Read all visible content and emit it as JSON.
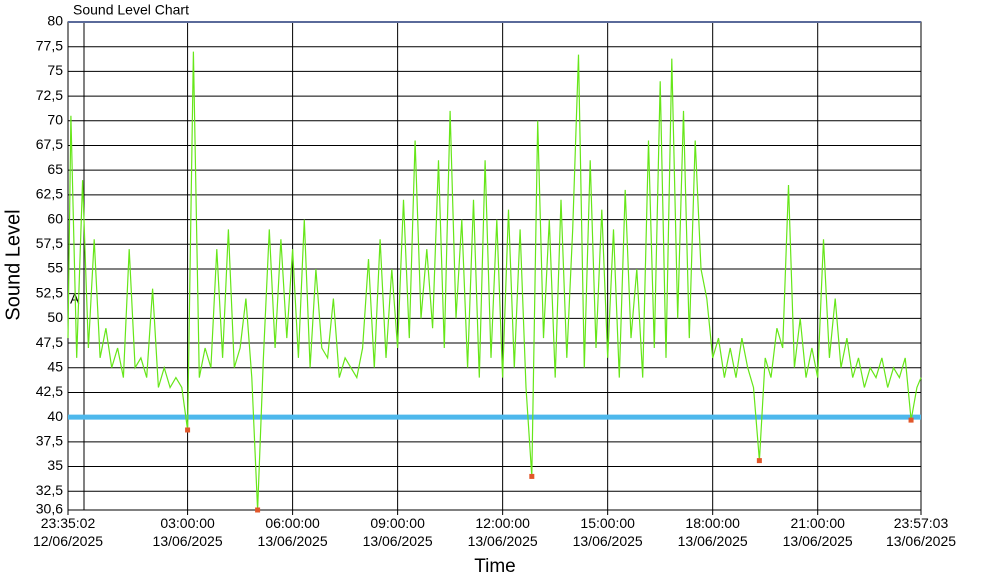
{
  "chart_data": {
    "type": "line",
    "title": "Sound Level Chart",
    "xlabel": "Time",
    "ylabel": "Sound Level",
    "annotation": "A",
    "xlim": [
      "2025-06-12T23:35:02",
      "2025-06-13T23:57:03"
    ],
    "xticks": [
      {
        "value": "2025-06-12T23:35:02",
        "label": "23:35:02\n12/06/2025"
      },
      {
        "value": "2025-06-13T03:00:00",
        "label": "03:00:00\n13/06/2025"
      },
      {
        "value": "2025-06-13T06:00:00",
        "label": "06:00:00\n13/06/2025"
      },
      {
        "value": "2025-06-13T09:00:00",
        "label": "09:00:00\n13/06/2025"
      },
      {
        "value": "2025-06-13T12:00:00",
        "label": "12:00:00\n13/06/2025"
      },
      {
        "value": "2025-06-13T15:00:00",
        "label": "15:00:00\n13/06/2025"
      },
      {
        "value": "2025-06-13T18:00:00",
        "label": "18:00:00\n13/06/2025"
      },
      {
        "value": "2025-06-13T21:00:00",
        "label": "21:00:00\n13/06/2025"
      },
      {
        "value": "2025-06-13T23:57:03",
        "label": "23:57:03\n13/06/2025"
      }
    ],
    "ylim": [
      30.6,
      80
    ],
    "yticks": [
      {
        "value": 30.6,
        "label": "30,6"
      },
      {
        "value": 32.5,
        "label": "32,5"
      },
      35,
      {
        "value": 37.5,
        "label": "37,5"
      },
      40,
      {
        "value": 42.5,
        "label": "42,5"
      },
      45,
      {
        "value": 47.5,
        "label": "47,5"
      },
      50,
      {
        "value": 52.5,
        "label": "52,5"
      },
      55,
      {
        "value": 57.5,
        "label": "57,5"
      },
      60,
      {
        "value": 62.5,
        "label": "62,5"
      },
      65,
      {
        "value": 67.5,
        "label": "67,5"
      },
      70,
      {
        "value": 72.5,
        "label": "72,5"
      },
      75,
      {
        "value": 77.5,
        "label": "77,5"
      },
      80
    ],
    "grid": true,
    "threshold": {
      "value": 40,
      "color": "#4db8ec"
    },
    "series": [
      {
        "color": "#66e619",
        "x": [
          "2025-06-12T23:35:02",
          "2025-06-12T23:40",
          "2025-06-12T23:50",
          "2025-06-13T00:00",
          "2025-06-13T00:10",
          "2025-06-13T00:20",
          "2025-06-13T00:30",
          "2025-06-13T00:40",
          "2025-06-13T00:50",
          "2025-06-13T01:00",
          "2025-06-13T01:10",
          "2025-06-13T01:20",
          "2025-06-13T01:30",
          "2025-06-13T01:40",
          "2025-06-13T01:50",
          "2025-06-13T02:00",
          "2025-06-13T02:10",
          "2025-06-13T02:20",
          "2025-06-13T02:30",
          "2025-06-13T02:40",
          "2025-06-13T02:50",
          "2025-06-13T03:00",
          "2025-06-13T03:10",
          "2025-06-13T03:20",
          "2025-06-13T03:30",
          "2025-06-13T03:40",
          "2025-06-13T03:50",
          "2025-06-13T04:00",
          "2025-06-13T04:10",
          "2025-06-13T04:20",
          "2025-06-13T04:30",
          "2025-06-13T04:40",
          "2025-06-13T04:50",
          "2025-06-13T05:00",
          "2025-06-13T05:10",
          "2025-06-13T05:20",
          "2025-06-13T05:30",
          "2025-06-13T05:40",
          "2025-06-13T05:50",
          "2025-06-13T06:00",
          "2025-06-13T06:10",
          "2025-06-13T06:20",
          "2025-06-13T06:30",
          "2025-06-13T06:40",
          "2025-06-13T06:50",
          "2025-06-13T07:00",
          "2025-06-13T07:10",
          "2025-06-13T07:20",
          "2025-06-13T07:30",
          "2025-06-13T07:40",
          "2025-06-13T07:50",
          "2025-06-13T08:00",
          "2025-06-13T08:10",
          "2025-06-13T08:20",
          "2025-06-13T08:30",
          "2025-06-13T08:40",
          "2025-06-13T08:50",
          "2025-06-13T09:00",
          "2025-06-13T09:10",
          "2025-06-13T09:20",
          "2025-06-13T09:30",
          "2025-06-13T09:40",
          "2025-06-13T09:50",
          "2025-06-13T10:00",
          "2025-06-13T10:10",
          "2025-06-13T10:20",
          "2025-06-13T10:30",
          "2025-06-13T10:40",
          "2025-06-13T10:50",
          "2025-06-13T11:00",
          "2025-06-13T11:10",
          "2025-06-13T11:20",
          "2025-06-13T11:30",
          "2025-06-13T11:40",
          "2025-06-13T11:50",
          "2025-06-13T12:00",
          "2025-06-13T12:10",
          "2025-06-13T12:20",
          "2025-06-13T12:30",
          "2025-06-13T12:40",
          "2025-06-13T12:50",
          "2025-06-13T13:00",
          "2025-06-13T13:10",
          "2025-06-13T13:20",
          "2025-06-13T13:30",
          "2025-06-13T13:40",
          "2025-06-13T13:50",
          "2025-06-13T14:00",
          "2025-06-13T14:10",
          "2025-06-13T14:20",
          "2025-06-13T14:30",
          "2025-06-13T14:40",
          "2025-06-13T14:50",
          "2025-06-13T15:00",
          "2025-06-13T15:10",
          "2025-06-13T15:20",
          "2025-06-13T15:30",
          "2025-06-13T15:40",
          "2025-06-13T15:50",
          "2025-06-13T16:00",
          "2025-06-13T16:10",
          "2025-06-13T16:20",
          "2025-06-13T16:30",
          "2025-06-13T16:40",
          "2025-06-13T16:50",
          "2025-06-13T17:00",
          "2025-06-13T17:10",
          "2025-06-13T17:20",
          "2025-06-13T17:30",
          "2025-06-13T17:40",
          "2025-06-13T17:50",
          "2025-06-13T18:00",
          "2025-06-13T18:10",
          "2025-06-13T18:20",
          "2025-06-13T18:30",
          "2025-06-13T18:40",
          "2025-06-13T18:50",
          "2025-06-13T19:00",
          "2025-06-13T19:10",
          "2025-06-13T19:20",
          "2025-06-13T19:30",
          "2025-06-13T19:40",
          "2025-06-13T19:50",
          "2025-06-13T20:00",
          "2025-06-13T20:10",
          "2025-06-13T20:20",
          "2025-06-13T20:30",
          "2025-06-13T20:40",
          "2025-06-13T20:50",
          "2025-06-13T21:00",
          "2025-06-13T21:10",
          "2025-06-13T21:20",
          "2025-06-13T21:30",
          "2025-06-13T21:40",
          "2025-06-13T21:50",
          "2025-06-13T22:00",
          "2025-06-13T22:10",
          "2025-06-13T22:20",
          "2025-06-13T22:30",
          "2025-06-13T22:40",
          "2025-06-13T22:50",
          "2025-06-13T23:00",
          "2025-06-13T23:10",
          "2025-06-13T23:20",
          "2025-06-13T23:30",
          "2025-06-13T23:40",
          "2025-06-13T23:50",
          "2025-06-13T23:57:03"
        ],
        "values": [
          48,
          70.5,
          46,
          64,
          47,
          58,
          46,
          49,
          45,
          47,
          44,
          57,
          45,
          46,
          44,
          53,
          43,
          45,
          43,
          44,
          43,
          38.7,
          77,
          44,
          47,
          45,
          57,
          46,
          59,
          45,
          47,
          52,
          44,
          30.6,
          46,
          59,
          47,
          58,
          48,
          57,
          46,
          60,
          45,
          55,
          47,
          46,
          52,
          44,
          46,
          45,
          44,
          47,
          56,
          45,
          58,
          46,
          55,
          47,
          62,
          48,
          68,
          50,
          57,
          49,
          66,
          47,
          71,
          50,
          60,
          45,
          62,
          44,
          66,
          46,
          60,
          44,
          61,
          45,
          59,
          43,
          34,
          70,
          48,
          60,
          44,
          62,
          46,
          59,
          76.7,
          45,
          66,
          47,
          61,
          46,
          59,
          44,
          63,
          48,
          55,
          44,
          68,
          47,
          74,
          46,
          76.3,
          50,
          71,
          48,
          68,
          55,
          52,
          46,
          48,
          44,
          47,
          44,
          48,
          45,
          43,
          35.6,
          46,
          44,
          49,
          47,
          63.5,
          45,
          50,
          44,
          47,
          44,
          58,
          46,
          52,
          45,
          48,
          44,
          46,
          43,
          45,
          44,
          46,
          43,
          45,
          44,
          46,
          39.7,
          43,
          44
        ]
      },
      {
        "color": "#e2572a",
        "marker": "square",
        "x": [
          "2025-06-13T03:00",
          "2025-06-13T05:00",
          "2025-06-13T12:50",
          "2025-06-13T19:20",
          "2025-06-13T23:40"
        ],
        "values": [
          38.7,
          30.6,
          34,
          35.6,
          39.7
        ]
      }
    ]
  }
}
